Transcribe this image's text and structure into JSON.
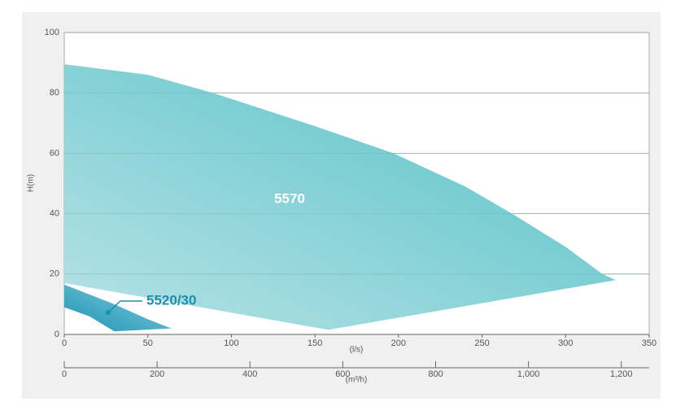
{
  "chart_data": {
    "type": "area",
    "y_label": "H(m)",
    "x_label": "(l/s)",
    "x2_label": "(m³/h)",
    "xlim": [
      0,
      350
    ],
    "xticks": [
      0,
      50,
      100,
      150,
      200,
      250,
      300,
      350
    ],
    "ylim": [
      0,
      100
    ],
    "yticks": [
      0,
      20,
      40,
      60,
      80,
      100
    ],
    "x2lim": [
      0,
      1260
    ],
    "x2ticks": [
      0,
      200,
      400,
      600,
      800,
      {
        "value": 1000,
        "label": "1,000"
      },
      {
        "value": 1200,
        "label": "1,200"
      }
    ],
    "grid": true,
    "series": [
      {
        "name": "5570",
        "gradient": [
          "#b8e2e6",
          "#52c1c7"
        ],
        "x": [
          0,
          50,
          89,
          150,
          197,
          240,
          268,
          300,
          322,
          330,
          158,
          0
        ],
        "y": [
          89.5,
          86,
          80,
          69,
          60,
          49,
          40,
          29,
          20,
          18,
          1.5,
          17
        ]
      },
      {
        "name": "5520/30",
        "gradient": [
          "#1a92b3",
          "#8ccfdf"
        ],
        "x": [
          0,
          30,
          50,
          64,
          30,
          15,
          0
        ],
        "y": [
          16.5,
          10,
          5,
          2,
          1,
          6,
          9
        ]
      }
    ]
  }
}
